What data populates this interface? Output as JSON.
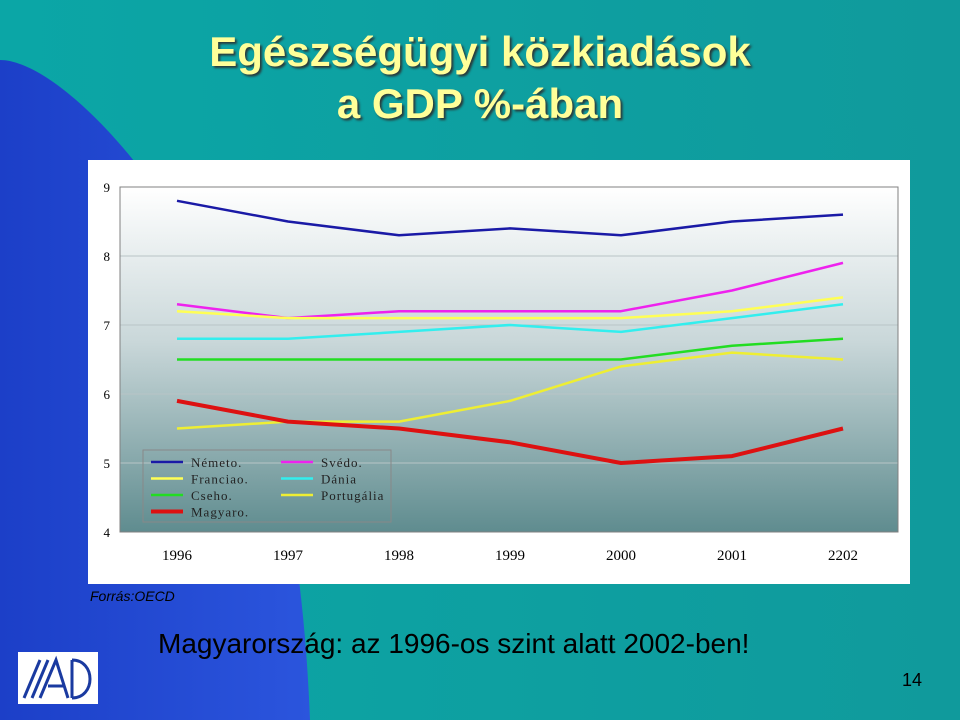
{
  "slide": {
    "title_line1": "Egészségügyi közkiadások",
    "title_line2": "a GDP %-ában",
    "source": "Forrás:OECD",
    "caption": "Magyarország: az 1996-os szint alatt 2002-ben!",
    "page_number": "14",
    "colors": {
      "background": "#0aa0a0",
      "blue_shape": "#2244cc",
      "title": "#ffff99"
    }
  },
  "chart_data": {
    "type": "line",
    "title": "",
    "xlabel": "",
    "ylabel": "",
    "categories": [
      "1996",
      "1997",
      "1998",
      "1999",
      "2000",
      "2001",
      "2202"
    ],
    "ylim": [
      4,
      9
    ],
    "yticks": [
      "4",
      "5",
      "6",
      "7",
      "8",
      "9"
    ],
    "grid": true,
    "legend_position": "bottom-left",
    "series": [
      {
        "name": "Németo.",
        "color": "#1a1aa6",
        "values": [
          8.8,
          8.5,
          8.3,
          8.4,
          8.3,
          8.5,
          8.6
        ]
      },
      {
        "name": "Svédo.",
        "color": "#ee22ee",
        "values": [
          7.3,
          7.1,
          7.2,
          7.2,
          7.2,
          7.5,
          7.9
        ]
      },
      {
        "name": "Franciao.",
        "color": "#ffff55",
        "values": [
          7.2,
          7.1,
          7.1,
          7.1,
          7.1,
          7.2,
          7.4
        ]
      },
      {
        "name": "Dánia",
        "color": "#33eeee",
        "values": [
          6.8,
          6.8,
          6.9,
          7.0,
          6.9,
          7.1,
          7.3
        ]
      },
      {
        "name": "Cseho.",
        "color": "#22dd22",
        "values": [
          6.5,
          6.5,
          6.5,
          6.5,
          6.5,
          6.7,
          6.8
        ]
      },
      {
        "name": "Portugália",
        "color": "#eeee33",
        "values": [
          5.5,
          5.6,
          5.6,
          5.9,
          6.4,
          6.6,
          6.5
        ]
      },
      {
        "name": "Magyaro.",
        "color": "#dd1111",
        "values": [
          5.9,
          5.6,
          5.5,
          5.3,
          5.0,
          5.1,
          5.5
        ]
      }
    ]
  }
}
